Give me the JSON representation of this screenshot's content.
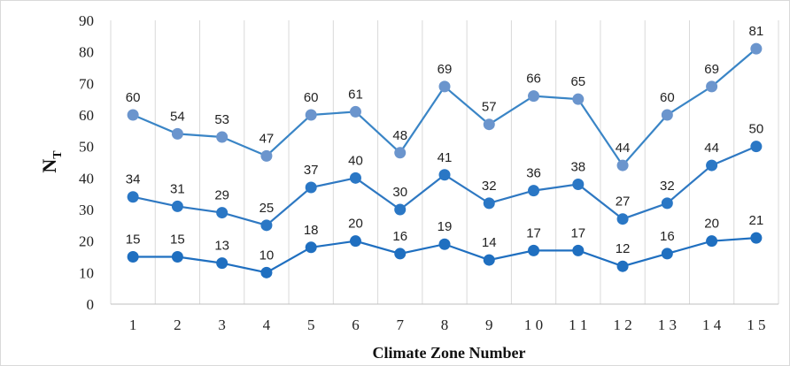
{
  "chart_data": {
    "type": "line",
    "title": "",
    "xlabel": "Climate Zone Number",
    "ylabel": {
      "main": "N",
      "subscript": "T"
    },
    "ylim": [
      0,
      90
    ],
    "yticks": [
      "0",
      "10",
      "20",
      "30",
      "40",
      "50",
      "60",
      "70",
      "80",
      "90"
    ],
    "categories": [
      "1",
      "2",
      "3",
      "4",
      "5",
      "6",
      "7",
      "8",
      "9",
      "10",
      "11",
      "12",
      "13",
      "14",
      "15"
    ],
    "grid": "vertical",
    "legend": "none",
    "series": [
      {
        "values": [
          60,
          54,
          53,
          47,
          60,
          61,
          48,
          69,
          57,
          66,
          65,
          44,
          60,
          69,
          81
        ],
        "labels": [
          "60",
          "54",
          "53",
          "47",
          "60",
          "61",
          "48",
          "69",
          "57",
          "66",
          "65",
          "44",
          "60",
          "69",
          "81"
        ],
        "line_color": "#3a85c6",
        "marker_color": "#6b95cd"
      },
      {
        "values": [
          34,
          31,
          29,
          25,
          37,
          40,
          30,
          41,
          32,
          36,
          38,
          27,
          32,
          44,
          50
        ],
        "labels": [
          "34",
          "31",
          "29",
          "25",
          "37",
          "40",
          "30",
          "41",
          "32",
          "36",
          "38",
          "27",
          "32",
          "44",
          "50"
        ],
        "line_color": "#2e78c2",
        "marker_color": "#2a77c5"
      },
      {
        "values": [
          15,
          15,
          13,
          10,
          18,
          20,
          16,
          19,
          14,
          17,
          17,
          12,
          16,
          20,
          21
        ],
        "labels": [
          "15",
          "15",
          "13",
          "10",
          "18",
          "20",
          "16",
          "19",
          "14",
          "17",
          "17",
          "12",
          "16",
          "20",
          "21"
        ],
        "line_color": "#1f6fc0",
        "marker_color": "#1f6fc0"
      }
    ]
  }
}
